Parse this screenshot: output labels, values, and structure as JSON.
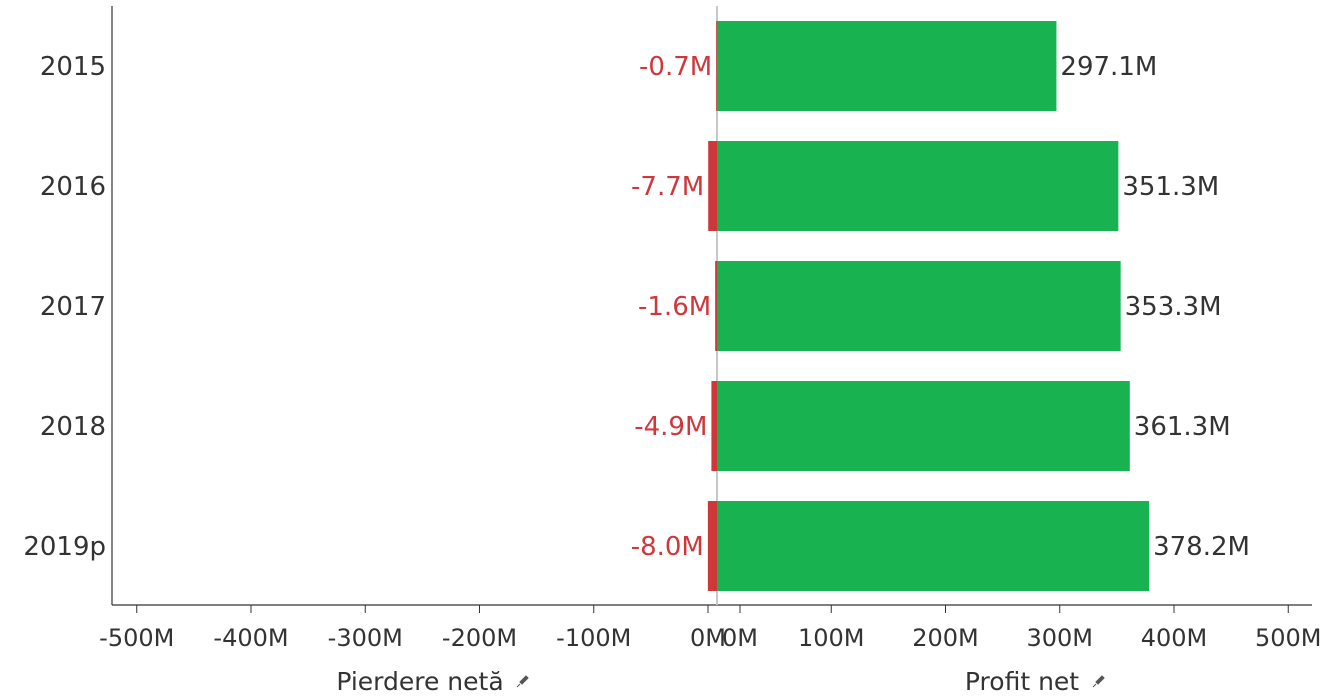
{
  "chart_data": {
    "type": "bar",
    "orientation": "horizontal",
    "layout": "diverging",
    "categories": [
      "2015",
      "2016",
      "2017",
      "2018",
      "2019p"
    ],
    "series": [
      {
        "name": "Pierdere netă",
        "values": [
          -0.7,
          -7.7,
          -1.6,
          -4.9,
          -8.0
        ],
        "labels": [
          "-0.7M",
          "-7.7M",
          "-1.6M",
          "-4.9M",
          "-8.0M"
        ],
        "color": "#d0373b"
      },
      {
        "name": "Profit net",
        "values": [
          297.1,
          351.3,
          353.3,
          361.3,
          378.2
        ],
        "labels": [
          "297.1M",
          "351.3M",
          "353.3M",
          "361.3M",
          "378.2M"
        ],
        "color": "#19b251"
      }
    ],
    "unit": "M",
    "xlim": [
      -500,
      500
    ],
    "left_ticks": [
      "-500M",
      "-400M",
      "-300M",
      "-200M",
      "-100M",
      "0M"
    ],
    "right_ticks": [
      "0M",
      "100M",
      "200M",
      "300M",
      "400M",
      "500M"
    ],
    "left_xlabel": "Pierdere netă",
    "right_xlabel": "Profit net",
    "grid": false,
    "label_colors": {
      "loss": "#d0373b",
      "profit": "#333333"
    }
  }
}
